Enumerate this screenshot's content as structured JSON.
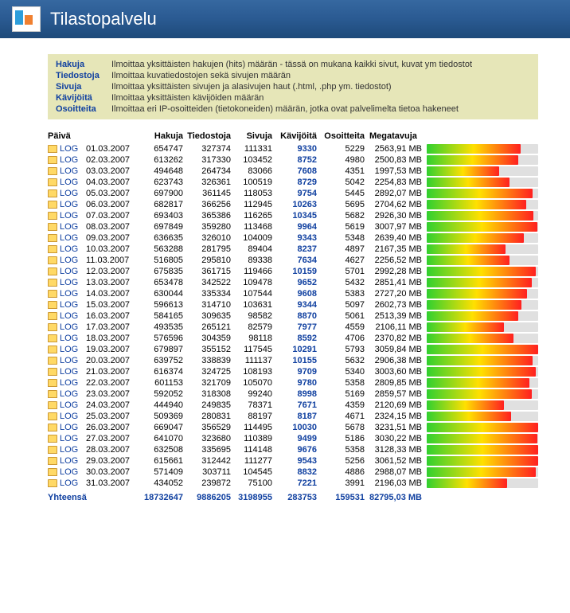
{
  "title": "Tilastopalvelu",
  "legend": [
    {
      "term": "Hakuja",
      "desc": "Ilmoittaa yksittäisten hakujen (hits) määrän - tässä on mukana kaikki sivut, kuvat ym tiedostot"
    },
    {
      "term": "Tiedostoja",
      "desc": "Ilmoittaa kuvatiedostojen sekä sivujen määrän"
    },
    {
      "term": "Sivuja",
      "desc": "Ilmoittaa yksittäisten sivujen ja alasivujen haut (.html, .php ym. tiedostot)"
    },
    {
      "term": "Kävijöitä",
      "desc": "Ilmoittaa yksittäisten kävijöiden määrän"
    },
    {
      "term": "Osoitteita",
      "desc": "Ilmoittaa eri IP-osoitteiden (tietokoneiden) määrän, jotka ovat palvelimelta tietoa hakeneet"
    }
  ],
  "columns": {
    "date": "Päivä",
    "hits": "Hakuja",
    "files": "Tiedostoja",
    "pages": "Sivuja",
    "visitors": "Kävijöitä",
    "hosts": "Osoitteita",
    "mb": "Megatavuja"
  },
  "log_label": "LOG",
  "rows": [
    {
      "date": "01.03.2007",
      "hits": "654747",
      "files": "327374",
      "pages": "111331",
      "vis": "9330",
      "hosts": "5229",
      "mb": "2563,91 MB",
      "pct": 84
    },
    {
      "date": "02.03.2007",
      "hits": "613262",
      "files": "317330",
      "pages": "103452",
      "vis": "8752",
      "hosts": "4980",
      "mb": "2500,83 MB",
      "pct": 82
    },
    {
      "date": "03.03.2007",
      "hits": "494648",
      "files": "264734",
      "pages": "83066",
      "vis": "7608",
      "hosts": "4351",
      "mb": "1997,53 MB",
      "pct": 65
    },
    {
      "date": "04.03.2007",
      "hits": "623743",
      "files": "326361",
      "pages": "100519",
      "vis": "8729",
      "hosts": "5042",
      "mb": "2254,83 MB",
      "pct": 74
    },
    {
      "date": "05.03.2007",
      "hits": "697900",
      "files": "361145",
      "pages": "118053",
      "vis": "9754",
      "hosts": "5445",
      "mb": "2892,07 MB",
      "pct": 95
    },
    {
      "date": "06.03.2007",
      "hits": "682817",
      "files": "366256",
      "pages": "112945",
      "vis": "10263",
      "hosts": "5695",
      "mb": "2704,62 MB",
      "pct": 89
    },
    {
      "date": "07.03.2007",
      "hits": "693403",
      "files": "365386",
      "pages": "116265",
      "vis": "10345",
      "hosts": "5682",
      "mb": "2926,30 MB",
      "pct": 96
    },
    {
      "date": "08.03.2007",
      "hits": "697849",
      "files": "359280",
      "pages": "113468",
      "vis": "9964",
      "hosts": "5619",
      "mb": "3007,97 MB",
      "pct": 99
    },
    {
      "date": "09.03.2007",
      "hits": "636635",
      "files": "326010",
      "pages": "104009",
      "vis": "9343",
      "hosts": "5348",
      "mb": "2639,40 MB",
      "pct": 87
    },
    {
      "date": "10.03.2007",
      "hits": "563288",
      "files": "281795",
      "pages": "89404",
      "vis": "8237",
      "hosts": "4897",
      "mb": "2167,35 MB",
      "pct": 71
    },
    {
      "date": "11.03.2007",
      "hits": "516805",
      "files": "295810",
      "pages": "89338",
      "vis": "7634",
      "hosts": "4627",
      "mb": "2256,52 MB",
      "pct": 74
    },
    {
      "date": "12.03.2007",
      "hits": "675835",
      "files": "361715",
      "pages": "119466",
      "vis": "10159",
      "hosts": "5701",
      "mb": "2992,28 MB",
      "pct": 98
    },
    {
      "date": "13.03.2007",
      "hits": "653478",
      "files": "342522",
      "pages": "109478",
      "vis": "9652",
      "hosts": "5432",
      "mb": "2851,41 MB",
      "pct": 94
    },
    {
      "date": "14.03.2007",
      "hits": "630044",
      "files": "335334",
      "pages": "107544",
      "vis": "9608",
      "hosts": "5383",
      "mb": "2727,20 MB",
      "pct": 90
    },
    {
      "date": "15.03.2007",
      "hits": "596613",
      "files": "314710",
      "pages": "103631",
      "vis": "9344",
      "hosts": "5097",
      "mb": "2602,73 MB",
      "pct": 85
    },
    {
      "date": "16.03.2007",
      "hits": "584165",
      "files": "309635",
      "pages": "98582",
      "vis": "8870",
      "hosts": "5061",
      "mb": "2513,39 MB",
      "pct": 82
    },
    {
      "date": "17.03.2007",
      "hits": "493535",
      "files": "265121",
      "pages": "82579",
      "vis": "7977",
      "hosts": "4559",
      "mb": "2106,11 MB",
      "pct": 69
    },
    {
      "date": "18.03.2007",
      "hits": "576596",
      "files": "304359",
      "pages": "98118",
      "vis": "8592",
      "hosts": "4706",
      "mb": "2370,82 MB",
      "pct": 78
    },
    {
      "date": "19.03.2007",
      "hits": "679897",
      "files": "355152",
      "pages": "117545",
      "vis": "10291",
      "hosts": "5793",
      "mb": "3059,84 MB",
      "pct": 100
    },
    {
      "date": "20.03.2007",
      "hits": "639752",
      "files": "338839",
      "pages": "111137",
      "vis": "10155",
      "hosts": "5632",
      "mb": "2906,38 MB",
      "pct": 95
    },
    {
      "date": "21.03.2007",
      "hits": "616374",
      "files": "324725",
      "pages": "108193",
      "vis": "9709",
      "hosts": "5340",
      "mb": "3003,60 MB",
      "pct": 98
    },
    {
      "date": "22.03.2007",
      "hits": "601153",
      "files": "321709",
      "pages": "105070",
      "vis": "9780",
      "hosts": "5358",
      "mb": "2809,85 MB",
      "pct": 92
    },
    {
      "date": "23.03.2007",
      "hits": "592052",
      "files": "318308",
      "pages": "99240",
      "vis": "8998",
      "hosts": "5169",
      "mb": "2859,57 MB",
      "pct": 94
    },
    {
      "date": "24.03.2007",
      "hits": "444940",
      "files": "249835",
      "pages": "78371",
      "vis": "7671",
      "hosts": "4359",
      "mb": "2120,69 MB",
      "pct": 69
    },
    {
      "date": "25.03.2007",
      "hits": "509369",
      "files": "280831",
      "pages": "88197",
      "vis": "8187",
      "hosts": "4671",
      "mb": "2324,15 MB",
      "pct": 76
    },
    {
      "date": "26.03.2007",
      "hits": "669047",
      "files": "356529",
      "pages": "114495",
      "vis": "10030",
      "hosts": "5678",
      "mb": "3231,51 MB",
      "pct": 100
    },
    {
      "date": "27.03.2007",
      "hits": "641070",
      "files": "323680",
      "pages": "110389",
      "vis": "9499",
      "hosts": "5186",
      "mb": "3030,22 MB",
      "pct": 99
    },
    {
      "date": "28.03.2007",
      "hits": "632508",
      "files": "335695",
      "pages": "114148",
      "vis": "9676",
      "hosts": "5358",
      "mb": "3128,33 MB",
      "pct": 100
    },
    {
      "date": "29.03.2007",
      "hits": "615661",
      "files": "312442",
      "pages": "111277",
      "vis": "9543",
      "hosts": "5256",
      "mb": "3061,52 MB",
      "pct": 100
    },
    {
      "date": "30.03.2007",
      "hits": "571409",
      "files": "303711",
      "pages": "104545",
      "vis": "8832",
      "hosts": "4886",
      "mb": "2988,07 MB",
      "pct": 98
    },
    {
      "date": "31.03.2007",
      "hits": "434052",
      "files": "239872",
      "pages": "75100",
      "vis": "7221",
      "hosts": "3991",
      "mb": "2196,03 MB",
      "pct": 72
    }
  ],
  "total": {
    "label": "Yhteensä",
    "hits": "18732647",
    "files": "9886205",
    "pages": "3198955",
    "vis": "283753",
    "hosts": "159531",
    "mb": "82795,03 MB"
  }
}
